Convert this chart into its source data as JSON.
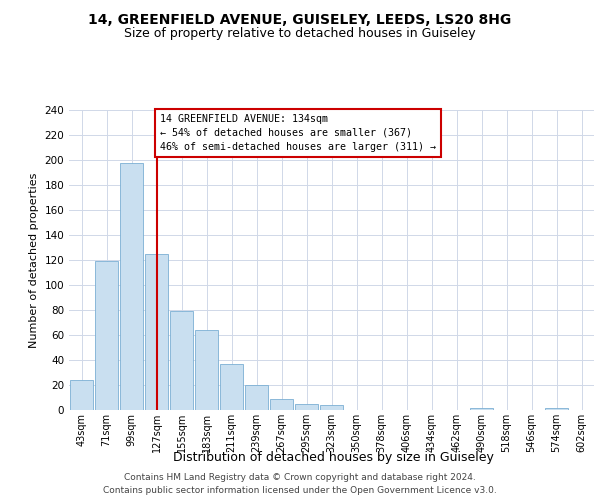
{
  "title1": "14, GREENFIELD AVENUE, GUISELEY, LEEDS, LS20 8HG",
  "title2": "Size of property relative to detached houses in Guiseley",
  "xlabel": "Distribution of detached houses by size in Guiseley",
  "ylabel": "Number of detached properties",
  "footer1": "Contains HM Land Registry data © Crown copyright and database right 2024.",
  "footer2": "Contains public sector information licensed under the Open Government Licence v3.0.",
  "bar_color": "#c9dff0",
  "bar_edge_color": "#7bafd4",
  "annotation_box_color": "#ffffff",
  "annotation_border_color": "#cc0000",
  "vline_color": "#cc0000",
  "grid_color": "#d0d8e8",
  "bin_labels": [
    "43sqm",
    "71sqm",
    "99sqm",
    "127sqm",
    "155sqm",
    "183sqm",
    "211sqm",
    "239sqm",
    "267sqm",
    "295sqm",
    "323sqm",
    "350sqm",
    "378sqm",
    "406sqm",
    "434sqm",
    "462sqm",
    "490sqm",
    "518sqm",
    "546sqm",
    "574sqm",
    "602sqm"
  ],
  "bar_values": [
    24,
    119,
    198,
    125,
    79,
    64,
    37,
    20,
    9,
    5,
    4,
    0,
    0,
    0,
    0,
    0,
    2,
    0,
    0,
    2,
    0
  ],
  "ylim": [
    0,
    240
  ],
  "yticks": [
    0,
    20,
    40,
    60,
    80,
    100,
    120,
    140,
    160,
    180,
    200,
    220,
    240
  ],
  "vline_x_index": 3,
  "annotation_text_line1": "14 GREENFIELD AVENUE: 134sqm",
  "annotation_text_line2": "← 54% of detached houses are smaller (367)",
  "annotation_text_line3": "46% of semi-detached houses are larger (311) →"
}
